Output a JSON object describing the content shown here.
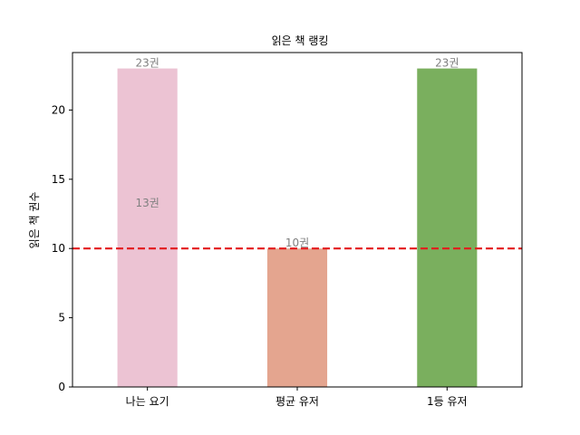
{
  "chart_data": {
    "type": "bar",
    "title": "읽은 책 랭킹",
    "xlabel": "",
    "ylabel": "읽은 책 권수",
    "categories": [
      "나는 요기",
      "평균 유저",
      "1등 유저"
    ],
    "values": [
      23,
      10,
      23
    ],
    "bar_colors": [
      "#ecc3d3",
      "#e4a58f",
      "#7aaf5e"
    ],
    "data_labels": [
      "23권",
      "10권",
      "23권"
    ],
    "annotations": [
      {
        "text": "13권",
        "category": "나는 요기",
        "y": 13.3
      }
    ],
    "reference_line": {
      "y": 10,
      "color": "#e31a1c",
      "style": "dashed"
    },
    "yticks": [
      0,
      5,
      10,
      15,
      20
    ],
    "ylim": [
      0,
      24.15
    ],
    "grid": false,
    "legend": "none",
    "label_color": "#808080"
  }
}
